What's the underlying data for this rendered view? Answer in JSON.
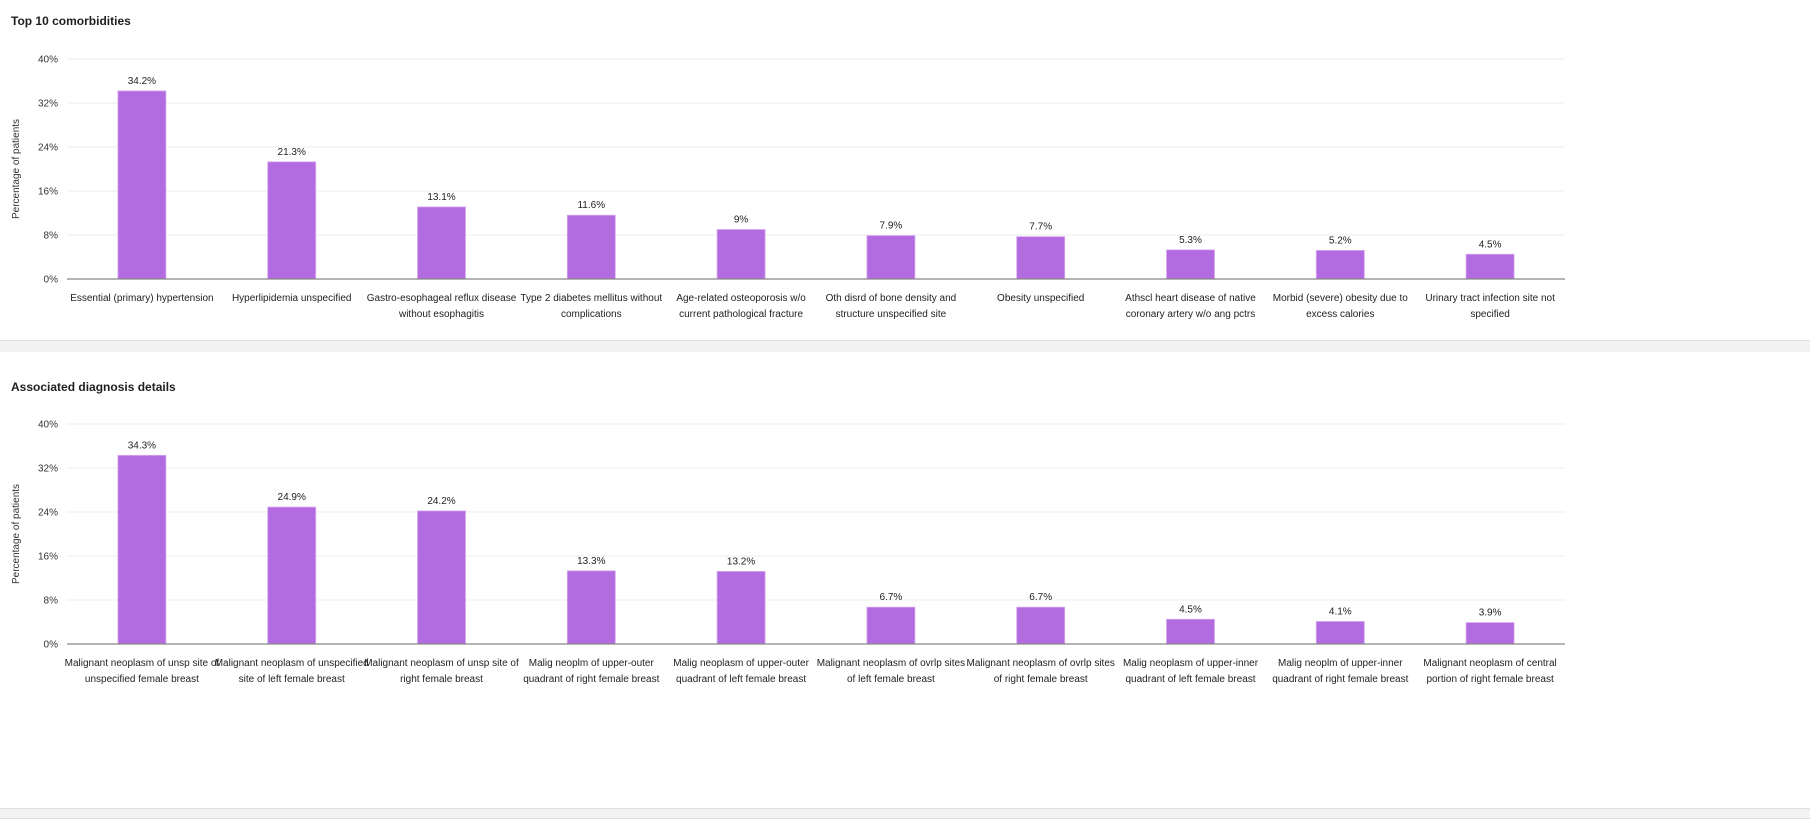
{
  "chart_data": [
    {
      "type": "bar",
      "title": "Top 10 comorbidities",
      "ylabel": "Percentage of patients",
      "xlabel": "",
      "ylim": [
        0,
        40
      ],
      "yticks": [
        "0%",
        "8%",
        "16%",
        "24%",
        "32%",
        "40%"
      ],
      "grid": true,
      "bar_color": "#b36be0",
      "categories": [
        [
          "Essential (primary) hypertension"
        ],
        [
          "Hyperlipidemia unspecified"
        ],
        [
          "Gastro-esophageal reflux disease",
          "without esophagitis"
        ],
        [
          "Type 2 diabetes mellitus without",
          "complications"
        ],
        [
          "Age-related osteoporosis w/o",
          "current pathological fracture"
        ],
        [
          "Oth disrd of bone density and",
          "structure unspecified site"
        ],
        [
          "Obesity unspecified"
        ],
        [
          "Athscl heart disease of native",
          "coronary artery w/o ang pctrs"
        ],
        [
          "Morbid (severe) obesity due to",
          "excess calories"
        ],
        [
          "Urinary tract infection site not",
          "specified"
        ]
      ],
      "values": [
        34.2,
        21.3,
        13.1,
        11.6,
        9,
        7.9,
        7.7,
        5.3,
        5.2,
        4.5
      ],
      "data_labels": [
        "34.2%",
        "21.3%",
        "13.1%",
        "11.6%",
        "9%",
        "7.9%",
        "7.7%",
        "5.3%",
        "5.2%",
        "4.5%"
      ]
    },
    {
      "type": "bar",
      "title": "Associated diagnosis details",
      "ylabel": "Percentage of patients",
      "xlabel": "",
      "ylim": [
        0,
        40
      ],
      "yticks": [
        "0%",
        "8%",
        "16%",
        "24%",
        "32%",
        "40%"
      ],
      "grid": true,
      "bar_color": "#b36be0",
      "categories": [
        [
          "Malignant neoplasm of unsp site of",
          "unspecified female breast"
        ],
        [
          "Malignant neoplasm of unspecified",
          "site of left female breast"
        ],
        [
          "Malignant neoplasm of unsp site of",
          "right female breast"
        ],
        [
          "Malig neoplm of upper-outer",
          "quadrant of right female breast"
        ],
        [
          "Malig neoplasm of upper-outer",
          "quadrant of left female breast"
        ],
        [
          "Malignant neoplasm of ovrlp sites",
          "of left female breast"
        ],
        [
          "Malignant neoplasm of ovrlp sites",
          "of right female breast"
        ],
        [
          "Malig neoplasm of upper-inner",
          "quadrant of left female breast"
        ],
        [
          "Malig neoplm of upper-inner",
          "quadrant of right female breast"
        ],
        [
          "Malignant neoplasm of central",
          "portion of right female breast"
        ]
      ],
      "values": [
        34.3,
        24.9,
        24.2,
        13.3,
        13.2,
        6.7,
        6.7,
        4.5,
        4.1,
        3.9
      ],
      "data_labels": [
        "34.3%",
        "24.9%",
        "24.2%",
        "13.3%",
        "13.2%",
        "6.7%",
        "6.7%",
        "4.5%",
        "4.1%",
        "3.9%"
      ]
    }
  ]
}
